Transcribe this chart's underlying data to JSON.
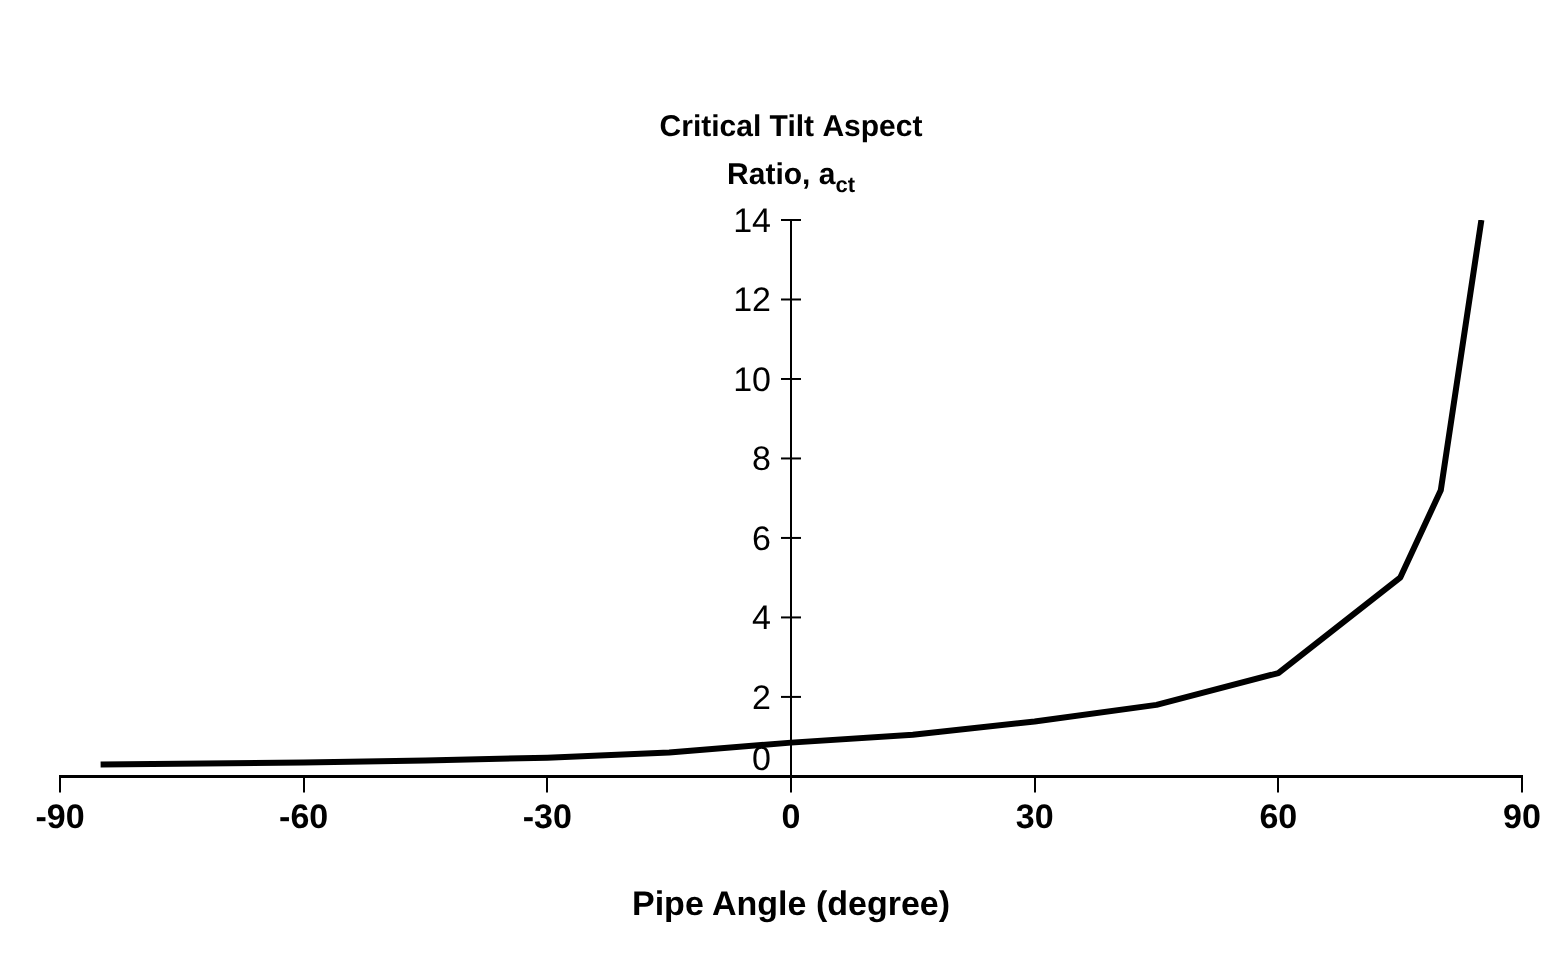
{
  "chart_data": {
    "type": "line",
    "ylabel": "Critical Tilt Aspect Ratio, a$_{ct}$",
    "xlabel": "Pipe Angle (degree)",
    "x": [
      -85,
      -60,
      -45,
      -30,
      -15,
      0,
      15,
      30,
      45,
      60,
      75,
      80,
      85
    ],
    "series": [
      {
        "color": "#000000",
        "values": [
          0.3,
          0.35,
          0.4,
          0.47,
          0.6,
          0.85,
          1.05,
          1.38,
          1.8,
          2.6,
          5.0,
          7.2,
          14
        ]
      }
    ],
    "xlim": [
      -90,
      90
    ],
    "xticks": [
      -90,
      -60,
      -30,
      0,
      30,
      60,
      90
    ],
    "ylim": [
      0,
      14
    ],
    "yticks": [
      0,
      2,
      4,
      6,
      8,
      10,
      12,
      14
    ],
    "grid": false,
    "legend": false,
    "marker": "none",
    "line_style": "solid"
  }
}
